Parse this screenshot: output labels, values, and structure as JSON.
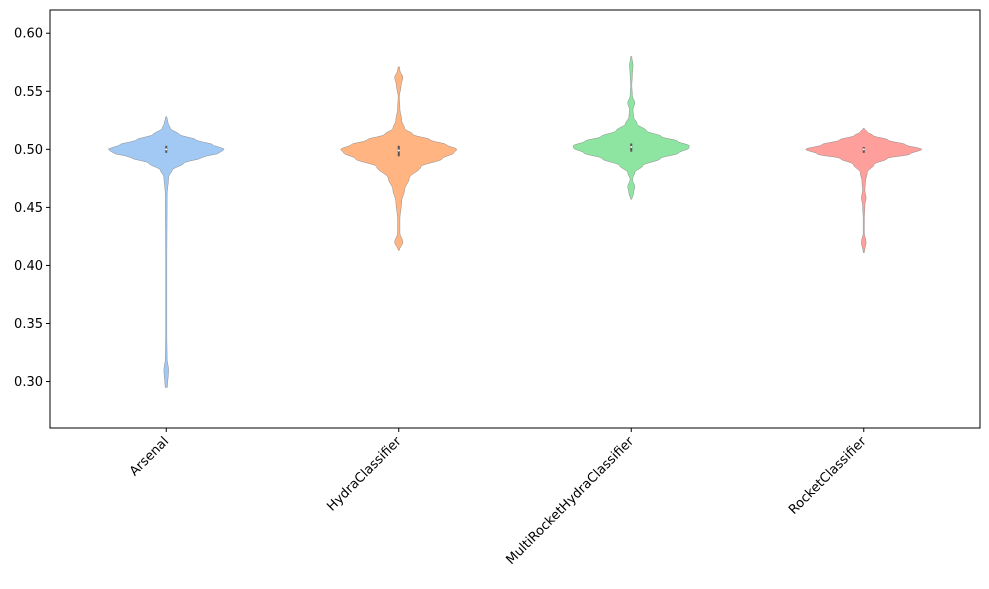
{
  "chart_data": {
    "type": "violin",
    "title": "",
    "xlabel": "",
    "ylabel": "",
    "ylim": [
      0.26,
      0.62
    ],
    "yticks": [
      0.3,
      0.35,
      0.4,
      0.45,
      0.5,
      0.55,
      0.6
    ],
    "ytick_labels": [
      "0.30",
      "0.35",
      "0.40",
      "0.45",
      "0.50",
      "0.55",
      "0.60"
    ],
    "grid": false,
    "legend": "none",
    "categories": [
      "Arsenal",
      "HydraClassifier",
      "MultiRocketHydraClassifier",
      "RocketClassifier"
    ],
    "series": [
      {
        "color": "#a1c9f4",
        "min": 0.295,
        "max": 0.528,
        "median": 0.5,
        "q1": 0.497,
        "q3": 0.503,
        "density": [
          [
            0.295,
            0.02
          ],
          [
            0.31,
            0.04
          ],
          [
            0.32,
            0.015
          ],
          [
            0.34,
            0.01
          ],
          [
            0.4,
            0.01
          ],
          [
            0.46,
            0.015
          ],
          [
            0.476,
            0.04
          ],
          [
            0.482,
            0.1
          ],
          [
            0.488,
            0.3
          ],
          [
            0.493,
            0.62
          ],
          [
            0.497,
            0.92
          ],
          [
            0.5,
            1.0
          ],
          [
            0.504,
            0.8
          ],
          [
            0.508,
            0.52
          ],
          [
            0.513,
            0.22
          ],
          [
            0.518,
            0.07
          ],
          [
            0.523,
            0.03
          ],
          [
            0.528,
            0.01
          ]
        ]
      },
      {
        "color": "#ffb482",
        "min": 0.413,
        "max": 0.571,
        "median": 0.499,
        "q1": 0.494,
        "q3": 0.503,
        "density": [
          [
            0.413,
            0.01
          ],
          [
            0.42,
            0.07
          ],
          [
            0.428,
            0.02
          ],
          [
            0.44,
            0.02
          ],
          [
            0.455,
            0.05
          ],
          [
            0.465,
            0.1
          ],
          [
            0.475,
            0.18
          ],
          [
            0.485,
            0.38
          ],
          [
            0.492,
            0.75
          ],
          [
            0.497,
            0.95
          ],
          [
            0.5,
            1.0
          ],
          [
            0.504,
            0.82
          ],
          [
            0.508,
            0.55
          ],
          [
            0.513,
            0.24
          ],
          [
            0.518,
            0.1
          ],
          [
            0.525,
            0.05
          ],
          [
            0.535,
            0.02
          ],
          [
            0.545,
            0.01
          ],
          [
            0.555,
            0.04
          ],
          [
            0.562,
            0.07
          ],
          [
            0.568,
            0.02
          ],
          [
            0.571,
            0.01
          ]
        ]
      },
      {
        "color": "#8de5a1",
        "min": 0.457,
        "max": 0.58,
        "median": 0.502,
        "q1": 0.498,
        "q3": 0.505,
        "density": [
          [
            0.457,
            0.01
          ],
          [
            0.462,
            0.04
          ],
          [
            0.468,
            0.06
          ],
          [
            0.474,
            0.02
          ],
          [
            0.48,
            0.06
          ],
          [
            0.486,
            0.2
          ],
          [
            0.492,
            0.5
          ],
          [
            0.497,
            0.82
          ],
          [
            0.501,
            0.99
          ],
          [
            0.503,
            1.0
          ],
          [
            0.507,
            0.8
          ],
          [
            0.511,
            0.52
          ],
          [
            0.516,
            0.26
          ],
          [
            0.522,
            0.1
          ],
          [
            0.528,
            0.04
          ],
          [
            0.534,
            0.03
          ],
          [
            0.54,
            0.06
          ],
          [
            0.546,
            0.02
          ],
          [
            0.555,
            0.01
          ],
          [
            0.565,
            0.02
          ],
          [
            0.572,
            0.03
          ],
          [
            0.58,
            0.01
          ]
        ]
      },
      {
        "color": "#ff9f9b",
        "min": 0.411,
        "max": 0.518,
        "median": 0.5,
        "q1": 0.497,
        "q3": 0.502,
        "density": [
          [
            0.411,
            0.01
          ],
          [
            0.42,
            0.04
          ],
          [
            0.428,
            0.01
          ],
          [
            0.44,
            0.01
          ],
          [
            0.452,
            0.02
          ],
          [
            0.458,
            0.04
          ],
          [
            0.465,
            0.02
          ],
          [
            0.472,
            0.03
          ],
          [
            0.48,
            0.06
          ],
          [
            0.487,
            0.18
          ],
          [
            0.492,
            0.4
          ],
          [
            0.496,
            0.8
          ],
          [
            0.5,
            1.0
          ],
          [
            0.504,
            0.72
          ],
          [
            0.508,
            0.42
          ],
          [
            0.512,
            0.16
          ],
          [
            0.515,
            0.06
          ],
          [
            0.518,
            0.01
          ]
        ]
      }
    ]
  }
}
